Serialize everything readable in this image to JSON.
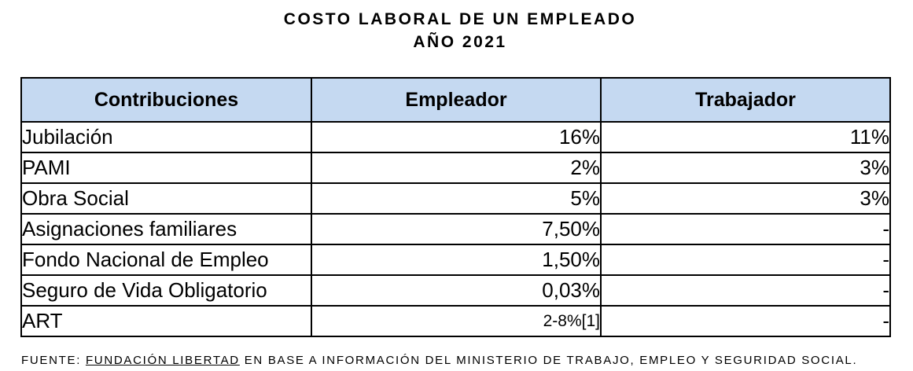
{
  "title": {
    "line1": "COSTO LABORAL DE UN EMPLEADO",
    "line2": "AÑO 2021"
  },
  "table": {
    "headers": [
      "Contribuciones",
      "Empleador",
      "Trabajador"
    ],
    "rows": [
      [
        "Jubilación",
        "16%",
        "11%"
      ],
      [
        "PAMI",
        "2%",
        "3%"
      ],
      [
        "Obra Social",
        "5%",
        "3%"
      ],
      [
        "Asignaciones familiares",
        "7,50%",
        "-"
      ],
      [
        "Fondo Nacional de Empleo",
        "1,50%",
        "-"
      ],
      [
        "Seguro de Vida Obligatorio",
        "0,03%",
        "-"
      ],
      [
        "ART",
        "2-8%[1]",
        "-"
      ]
    ],
    "header_color": "#c5d9f1"
  },
  "source": {
    "prefix": "FUENTE: ",
    "link": "FUNDACIÓN LIBERTAD",
    "suffix": " EN BASE A INFORMACIÓN DEL MINISTERIO DE TRABAJO, EMPLEO Y SEGURIDAD SOCIAL."
  }
}
